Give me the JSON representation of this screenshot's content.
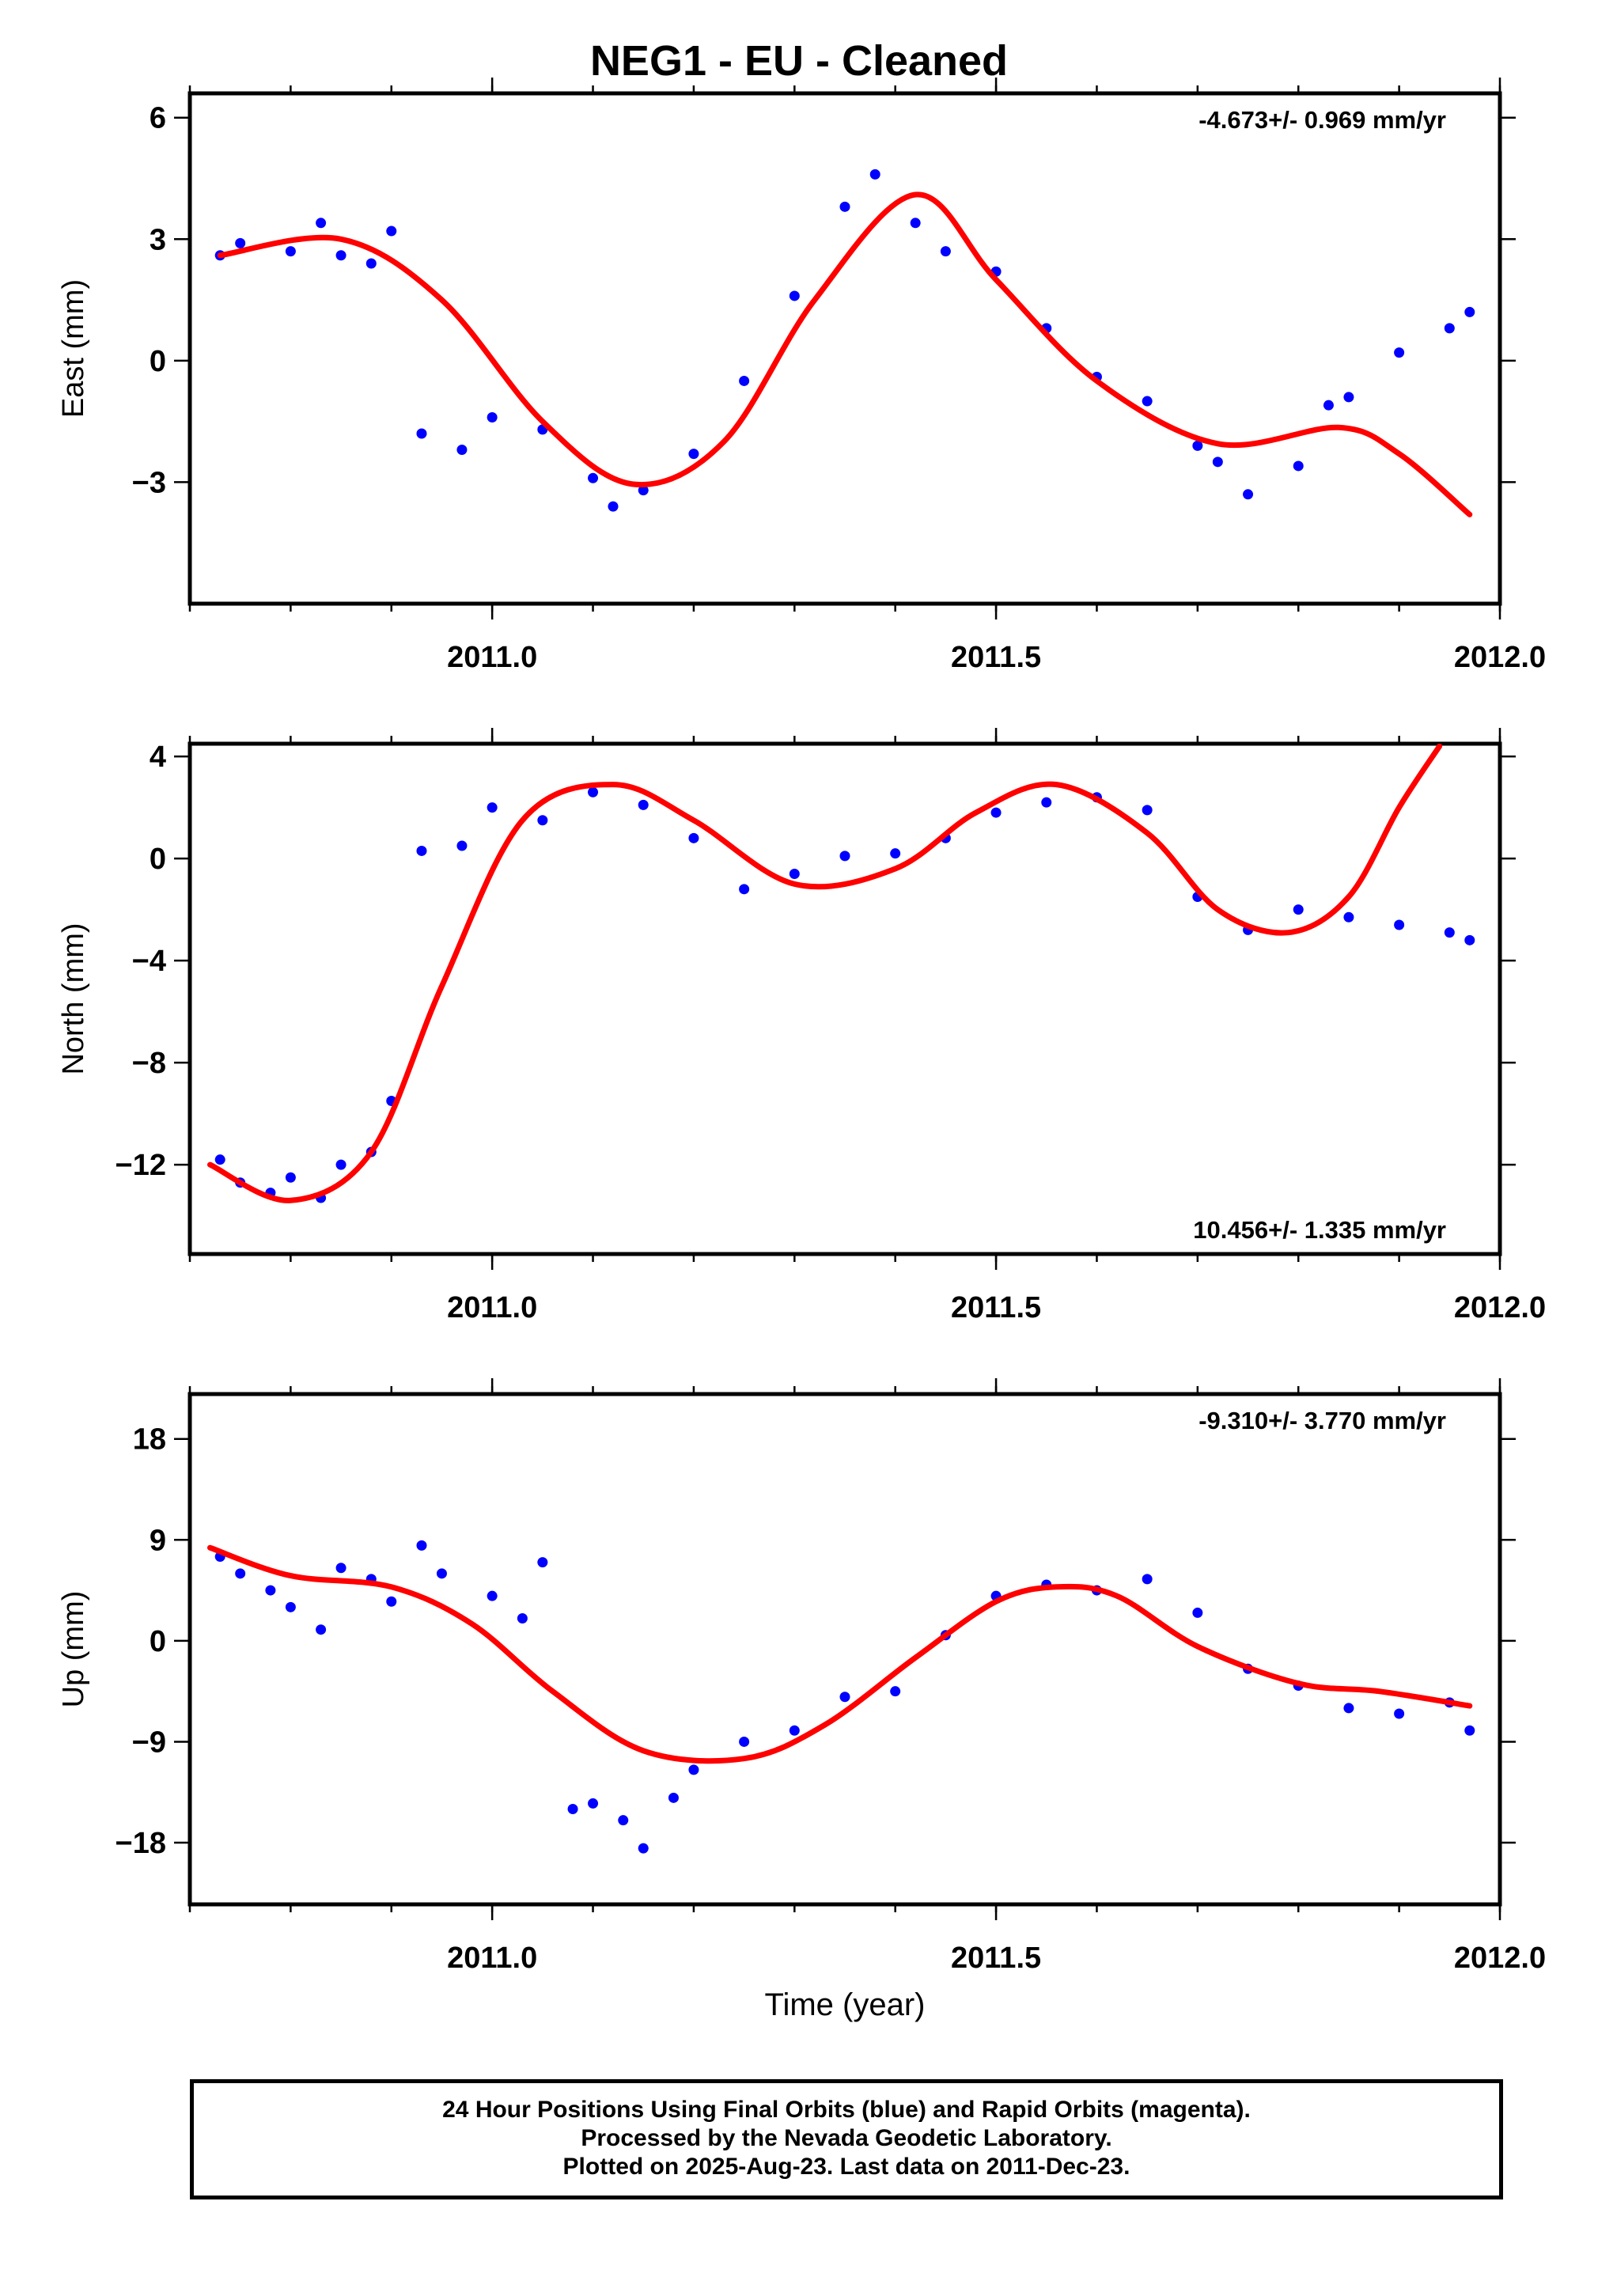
{
  "title": "NEG1  - EU - Cleaned",
  "footer": {
    "lines": [
      "24 Hour Positions Using Final Orbits (blue) and Rapid Orbits (magenta).",
      "Processed by the Nevada Geodetic Laboratory.",
      "Plotted on 2025-Aug-23. Last data on 2011-Dec-23."
    ]
  },
  "colors": {
    "data": "#0000ff",
    "fit": "#ff0000",
    "axes": "#000000"
  },
  "chart_data": [
    {
      "type": "scatter",
      "name": "east",
      "ylabel": "East (mm)",
      "xlabel": "",
      "xlim": [
        2010.7,
        2012.0
      ],
      "ylim": [
        -6.0,
        6.6
      ],
      "xticks": [
        2011.0,
        2011.5,
        2012.0
      ],
      "xtick_labels": [
        "2011.0",
        "2011.5",
        "2012.0"
      ],
      "yticks": [
        6,
        3,
        0,
        -3
      ],
      "ytick_labels": [
        "6",
        "3",
        "0",
        "−3"
      ],
      "rate": "-4.673+/- 0.969 mm/yr",
      "rate_position": "top-right",
      "series": [
        {
          "x": [
            2010.73,
            2010.75,
            2010.8,
            2010.83,
            2010.85,
            2010.88,
            2010.9,
            2010.93,
            2010.97,
            2011.0,
            2011.05,
            2011.1,
            2011.12,
            2011.15,
            2011.2,
            2011.25,
            2011.3,
            2011.35,
            2011.38,
            2011.42,
            2011.45,
            2011.5,
            2011.55,
            2011.6,
            2011.65,
            2011.7,
            2011.72,
            2011.75,
            2011.8,
            2011.83,
            2011.85,
            2011.9,
            2011.95,
            2011.97
          ],
          "y": [
            2.6,
            2.9,
            2.7,
            3.4,
            2.6,
            2.4,
            3.2,
            -1.8,
            -2.2,
            -1.4,
            -1.7,
            -2.9,
            -3.6,
            -3.2,
            -2.3,
            -0.5,
            1.6,
            3.8,
            4.6,
            3.4,
            2.7,
            2.2,
            0.8,
            -0.4,
            -1.0,
            -2.1,
            -2.5,
            -3.3,
            -2.6,
            -1.1,
            -0.9,
            0.2,
            0.8,
            1.2
          ]
        }
      ],
      "fit": {
        "x": [
          2010.73,
          2010.85,
          2010.95,
          2011.05,
          2011.14,
          2011.23,
          2011.32,
          2011.42,
          2011.5,
          2011.6,
          2011.72,
          2011.84,
          2011.9,
          2011.97
        ],
        "y": [
          2.6,
          3.0,
          1.5,
          -1.5,
          -3.05,
          -2.0,
          1.5,
          4.1,
          2.0,
          -0.5,
          -2.05,
          -1.65,
          -2.3,
          -3.8
        ]
      }
    },
    {
      "type": "scatter",
      "name": "north",
      "ylabel": "North (mm)",
      "xlabel": "",
      "xlim": [
        2010.7,
        2012.0
      ],
      "ylim": [
        -15.5,
        4.5
      ],
      "xticks": [
        2011.0,
        2011.5,
        2012.0
      ],
      "xtick_labels": [
        "2011.0",
        "2011.5",
        "2012.0"
      ],
      "yticks": [
        4,
        0,
        -4,
        -8,
        -12
      ],
      "ytick_labels": [
        "4",
        "0",
        "−4",
        "−8",
        "−12"
      ],
      "rate": "10.456+/- 1.335 mm/yr",
      "rate_position": "bottom-right",
      "series": [
        {
          "x": [
            2010.73,
            2010.75,
            2010.78,
            2010.8,
            2010.83,
            2010.85,
            2010.88,
            2010.9,
            2010.93,
            2010.97,
            2011.0,
            2011.05,
            2011.1,
            2011.15,
            2011.2,
            2011.25,
            2011.3,
            2011.35,
            2011.4,
            2011.45,
            2011.5,
            2011.55,
            2011.6,
            2011.65,
            2011.7,
            2011.75,
            2011.8,
            2011.85,
            2011.9,
            2011.95,
            2011.97
          ],
          "y": [
            -11.8,
            -12.7,
            -13.1,
            -12.5,
            -13.3,
            -12.0,
            -11.5,
            -9.5,
            0.3,
            0.5,
            2.0,
            1.5,
            2.6,
            2.1,
            0.8,
            -1.2,
            -0.6,
            0.1,
            0.2,
            0.8,
            1.8,
            2.2,
            2.4,
            1.9,
            -1.5,
            -2.8,
            -2.0,
            -2.3,
            -2.6,
            -2.9,
            -3.2
          ]
        }
      ],
      "fit": {
        "x": [
          2010.72,
          2010.8,
          2010.88,
          2010.95,
          2011.03,
          2011.12,
          2011.2,
          2011.3,
          2011.4,
          2011.48,
          2011.56,
          2011.65,
          2011.72,
          2011.79,
          2011.85,
          2011.9,
          2011.94
        ],
        "y": [
          -12.0,
          -13.4,
          -11.5,
          -5.0,
          1.5,
          2.9,
          1.5,
          -1.0,
          -0.4,
          1.8,
          2.9,
          1.0,
          -2.0,
          -2.9,
          -1.5,
          2.0,
          4.4
        ]
      }
    },
    {
      "type": "scatter",
      "name": "up",
      "ylabel": "Up (mm)",
      "xlabel": "Time (year)",
      "xlim": [
        2010.7,
        2012.0
      ],
      "ylim": [
        -23.5,
        22.0
      ],
      "xticks": [
        2011.0,
        2011.5,
        2012.0
      ],
      "xtick_labels": [
        "2011.0",
        "2011.5",
        "2012.0"
      ],
      "yticks": [
        18,
        9,
        0,
        -9,
        -18
      ],
      "ytick_labels": [
        "18",
        "9",
        "0",
        "−9",
        "−18"
      ],
      "rate": "-9.310+/- 3.770 mm/yr",
      "rate_position": "top-right",
      "series": [
        {
          "x": [
            2010.73,
            2010.75,
            2010.78,
            2010.8,
            2010.83,
            2010.85,
            2010.88,
            2010.9,
            2010.93,
            2010.95,
            2011.0,
            2011.03,
            2011.05,
            2011.08,
            2011.1,
            2011.13,
            2011.15,
            2011.18,
            2011.2,
            2011.25,
            2011.3,
            2011.35,
            2011.4,
            2011.45,
            2011.5,
            2011.55,
            2011.6,
            2011.65,
            2011.7,
            2011.75,
            2011.8,
            2011.85,
            2011.9,
            2011.95,
            2011.97
          ],
          "y": [
            7.5,
            6.0,
            4.5,
            3.0,
            1.0,
            6.5,
            5.5,
            3.5,
            8.5,
            6.0,
            4.0,
            2.0,
            7.0,
            -15.0,
            -14.5,
            -16.0,
            -18.5,
            -14.0,
            -11.5,
            -9.0,
            -8.0,
            -5.0,
            -4.5,
            0.5,
            4.0,
            5.0,
            4.5,
            5.5,
            2.5,
            -2.5,
            -4.0,
            -6.0,
            -6.5,
            -5.5,
            -8.0
          ]
        }
      ],
      "fit": {
        "x": [
          2010.72,
          2010.8,
          2010.9,
          2010.98,
          2011.06,
          2011.15,
          2011.25,
          2011.33,
          2011.42,
          2011.5,
          2011.56,
          2011.62,
          2011.7,
          2011.8,
          2011.88,
          2011.97
        ],
        "y": [
          8.3,
          5.8,
          4.8,
          1.5,
          -4.5,
          -9.8,
          -10.5,
          -7.5,
          -1.5,
          3.5,
          4.8,
          4.0,
          -0.5,
          -3.8,
          -4.5,
          -5.8
        ]
      }
    }
  ]
}
